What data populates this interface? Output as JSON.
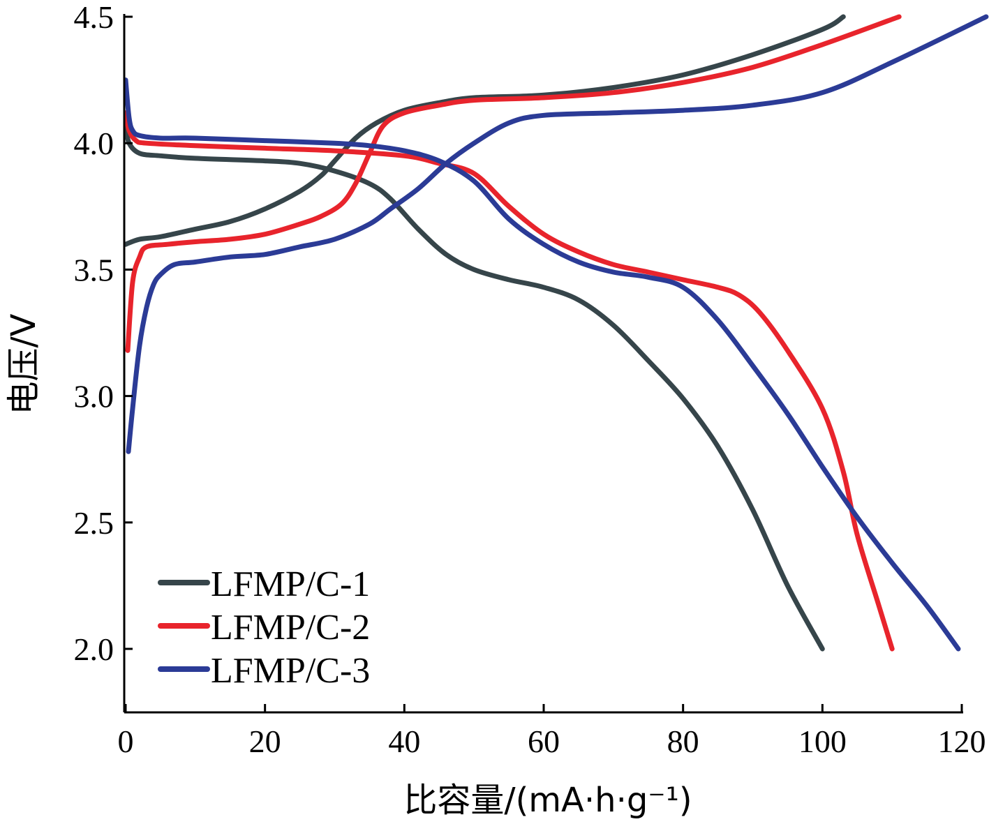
{
  "chart_data": {
    "type": "line",
    "xlabel": "比容量/(mA·h·g⁻¹)",
    "ylabel": "电压/V",
    "xlim": [
      0,
      120
    ],
    "ylim": [
      1.75,
      4.5
    ],
    "x_ticks": [
      "0",
      "20",
      "40",
      "60",
      "80",
      "100",
      "120"
    ],
    "y_ticks": [
      "2.0",
      "2.5",
      "3.0",
      "3.5",
      "4.0",
      "4.5"
    ],
    "grid": false,
    "legend_position": "bottom-left",
    "series": [
      {
        "name": "LFMP/C-1",
        "color": "#36454a",
        "charge": [
          [
            0,
            3.6
          ],
          [
            2,
            3.62
          ],
          [
            5,
            3.63
          ],
          [
            10,
            3.66
          ],
          [
            15,
            3.69
          ],
          [
            20,
            3.74
          ],
          [
            25,
            3.81
          ],
          [
            28,
            3.87
          ],
          [
            30,
            3.93
          ],
          [
            33,
            4.02
          ],
          [
            36,
            4.08
          ],
          [
            40,
            4.13
          ],
          [
            45,
            4.16
          ],
          [
            50,
            4.18
          ],
          [
            60,
            4.19
          ],
          [
            70,
            4.22
          ],
          [
            80,
            4.27
          ],
          [
            90,
            4.35
          ],
          [
            100,
            4.45
          ],
          [
            103,
            4.5
          ]
        ],
        "discharge": [
          [
            0,
            4.07
          ],
          [
            0.5,
            4.0
          ],
          [
            2,
            3.96
          ],
          [
            5,
            3.95
          ],
          [
            10,
            3.94
          ],
          [
            20,
            3.93
          ],
          [
            25,
            3.92
          ],
          [
            30,
            3.89
          ],
          [
            35,
            3.84
          ],
          [
            38,
            3.78
          ],
          [
            42,
            3.66
          ],
          [
            46,
            3.56
          ],
          [
            50,
            3.5
          ],
          [
            55,
            3.46
          ],
          [
            60,
            3.43
          ],
          [
            65,
            3.38
          ],
          [
            70,
            3.28
          ],
          [
            75,
            3.14
          ],
          [
            80,
            2.99
          ],
          [
            85,
            2.8
          ],
          [
            90,
            2.55
          ],
          [
            95,
            2.25
          ],
          [
            100,
            2.0
          ]
        ]
      },
      {
        "name": "LFMP/C-2",
        "color": "#e8242c",
        "charge": [
          [
            0.3,
            3.18
          ],
          [
            1,
            3.45
          ],
          [
            2,
            3.55
          ],
          [
            3,
            3.59
          ],
          [
            6,
            3.6
          ],
          [
            10,
            3.61
          ],
          [
            15,
            3.62
          ],
          [
            20,
            3.64
          ],
          [
            25,
            3.68
          ],
          [
            28,
            3.71
          ],
          [
            31,
            3.76
          ],
          [
            33,
            3.84
          ],
          [
            35,
            3.96
          ],
          [
            37,
            4.07
          ],
          [
            40,
            4.12
          ],
          [
            45,
            4.15
          ],
          [
            50,
            4.17
          ],
          [
            60,
            4.18
          ],
          [
            70,
            4.2
          ],
          [
            80,
            4.24
          ],
          [
            90,
            4.3
          ],
          [
            100,
            4.39
          ],
          [
            111,
            4.5
          ]
        ],
        "discharge": [
          [
            0,
            4.12
          ],
          [
            0.5,
            4.05
          ],
          [
            1.5,
            4.01
          ],
          [
            3,
            4.0
          ],
          [
            10,
            3.99
          ],
          [
            20,
            3.98
          ],
          [
            30,
            3.97
          ],
          [
            40,
            3.95
          ],
          [
            45,
            3.92
          ],
          [
            50,
            3.88
          ],
          [
            55,
            3.75
          ],
          [
            60,
            3.64
          ],
          [
            65,
            3.57
          ],
          [
            70,
            3.52
          ],
          [
            75,
            3.49
          ],
          [
            80,
            3.46
          ],
          [
            85,
            3.43
          ],
          [
            88,
            3.4
          ],
          [
            91,
            3.33
          ],
          [
            95,
            3.18
          ],
          [
            100,
            2.95
          ],
          [
            103,
            2.7
          ],
          [
            105,
            2.45
          ],
          [
            108,
            2.18
          ],
          [
            110,
            2.0
          ]
        ]
      },
      {
        "name": "LFMP/C-3",
        "color": "#2b3b96",
        "charge": [
          [
            0.4,
            2.78
          ],
          [
            1,
            2.95
          ],
          [
            2,
            3.2
          ],
          [
            3,
            3.35
          ],
          [
            4,
            3.44
          ],
          [
            5,
            3.48
          ],
          [
            7,
            3.52
          ],
          [
            10,
            3.53
          ],
          [
            15,
            3.55
          ],
          [
            20,
            3.56
          ],
          [
            25,
            3.59
          ],
          [
            30,
            3.62
          ],
          [
            35,
            3.68
          ],
          [
            38,
            3.74
          ],
          [
            42,
            3.82
          ],
          [
            46,
            3.92
          ],
          [
            50,
            4.0
          ],
          [
            55,
            4.08
          ],
          [
            60,
            4.11
          ],
          [
            70,
            4.12
          ],
          [
            80,
            4.13
          ],
          [
            90,
            4.15
          ],
          [
            100,
            4.2
          ],
          [
            110,
            4.32
          ],
          [
            123.5,
            4.5
          ]
        ],
        "discharge": [
          [
            0,
            4.25
          ],
          [
            0.5,
            4.1
          ],
          [
            1,
            4.05
          ],
          [
            2,
            4.03
          ],
          [
            5,
            4.02
          ],
          [
            10,
            4.02
          ],
          [
            20,
            4.01
          ],
          [
            30,
            4.0
          ],
          [
            35,
            3.99
          ],
          [
            40,
            3.97
          ],
          [
            45,
            3.93
          ],
          [
            50,
            3.85
          ],
          [
            55,
            3.7
          ],
          [
            60,
            3.6
          ],
          [
            65,
            3.53
          ],
          [
            70,
            3.49
          ],
          [
            75,
            3.47
          ],
          [
            80,
            3.43
          ],
          [
            85,
            3.3
          ],
          [
            90,
            3.12
          ],
          [
            95,
            2.93
          ],
          [
            100,
            2.72
          ],
          [
            105,
            2.52
          ],
          [
            110,
            2.34
          ],
          [
            115,
            2.17
          ],
          [
            119.5,
            2.0
          ]
        ]
      }
    ]
  }
}
